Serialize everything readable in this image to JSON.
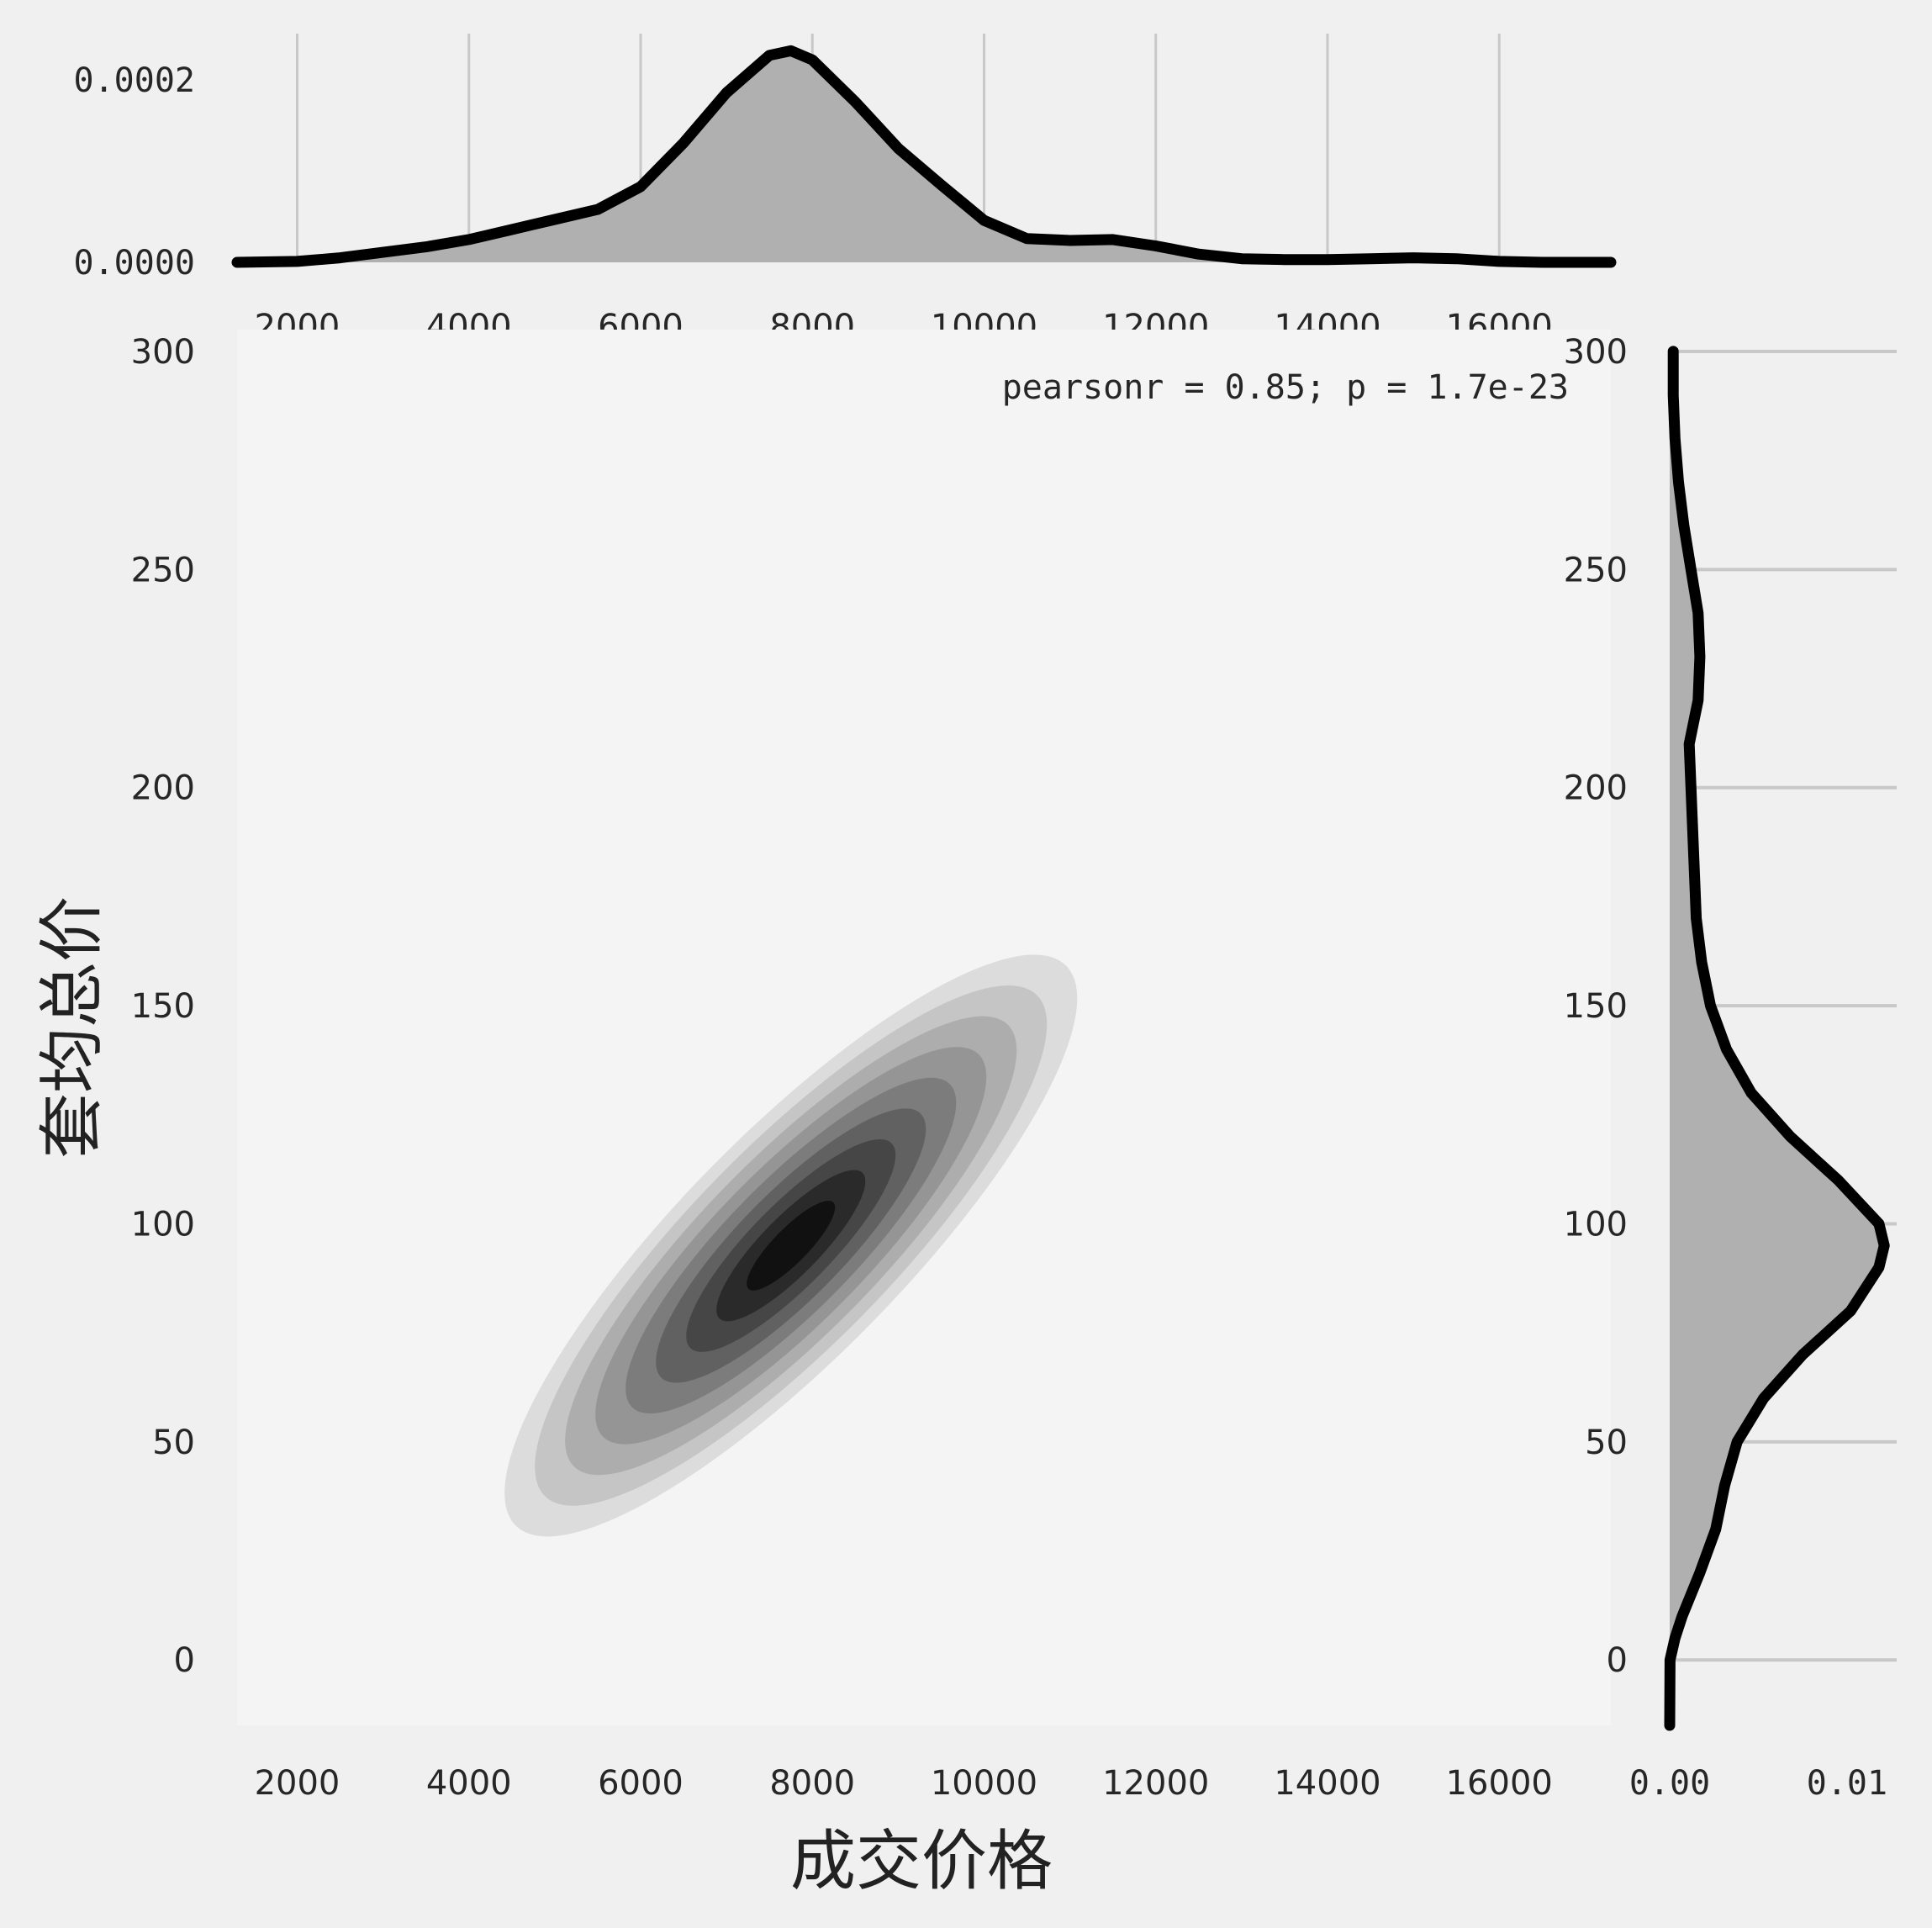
{
  "chart_data": {
    "type": "jointplot-kde",
    "title": "",
    "xlabel": "成交价格",
    "ylabel": "套均总价",
    "xlim": [
      1300,
      17300
    ],
    "ylim": [
      -15,
      305
    ],
    "x_ticks": [
      2000,
      4000,
      6000,
      8000,
      10000,
      12000,
      14000,
      16000
    ],
    "y_ticks": [
      0,
      50,
      100,
      150,
      200,
      250,
      300
    ],
    "x_tick_labels": [
      "2000",
      "4000",
      "6000",
      "8000",
      "10000",
      "12000",
      "14000",
      "16000"
    ],
    "y_tick_labels": [
      "0",
      "50",
      "100",
      "150",
      "200",
      "250",
      "300"
    ],
    "annotation": "pearsonr = 0.85; p = 1.7e-23",
    "grid": true,
    "colors": {
      "background": "#f0f0f0",
      "plot_background": "#f4f4f4",
      "grid": "#c8c8c8",
      "kde_fill": "#b0b0b0",
      "kde_line": "#000000",
      "contour_levels": [
        "#dcdcdc",
        "#c5c5c5",
        "#adadad",
        "#959595",
        "#7c7c7c",
        "#616161",
        "#464646",
        "#2a2a2a",
        "#111111"
      ]
    },
    "joint_kde": {
      "center": [
        7750,
        95
      ],
      "std_x": 1350,
      "std_y": 27,
      "correlation": 0.85,
      "levels": 9
    },
    "marginal_x": {
      "ylabel_ticks": [
        0.0,
        0.0002
      ],
      "y_tick_labels": [
        "0.0000",
        "0.0002"
      ],
      "ylim": [
        0,
        0.00026
      ],
      "x": [
        1300,
        2000,
        2500,
        3000,
        3500,
        4000,
        4500,
        5000,
        5500,
        6000,
        6500,
        7000,
        7500,
        7750,
        8000,
        8500,
        9000,
        9500,
        10000,
        10500,
        11000,
        11500,
        12000,
        12500,
        13000,
        13500,
        14000,
        14500,
        15000,
        15500,
        16000,
        16500,
        17000,
        17300
      ],
      "density": [
        0.0,
        1e-06,
        5e-06,
        1.1e-05,
        1.7e-05,
        2.5e-05,
        3.6e-05,
        4.7e-05,
        5.8e-05,
        8.3e-05,
        0.000131,
        0.000186,
        0.000227,
        0.000232,
        0.000222,
        0.000176,
        0.000125,
        8.5e-05,
        4.6e-05,
        2.6e-05,
        2.4e-05,
        2.5e-05,
        1.8e-05,
        9e-06,
        4e-06,
        3e-06,
        3e-06,
        4e-06,
        5e-06,
        4e-06,
        1e-06,
        0.0,
        0.0,
        0.0
      ]
    },
    "marginal_y": {
      "xlabel_ticks": [
        0.0,
        0.01
      ],
      "x_tick_labels": [
        "0.00",
        "0.01"
      ],
      "xlim": [
        0,
        0.0128
      ],
      "y": [
        -15,
        0,
        5,
        10,
        20,
        30,
        40,
        50,
        60,
        70,
        80,
        90,
        95,
        100,
        110,
        120,
        130,
        140,
        150,
        160,
        170,
        180,
        190,
        200,
        210,
        220,
        230,
        240,
        250,
        260,
        270,
        280,
        290,
        300
      ],
      "density": [
        0.0,
        2e-05,
        0.0003,
        0.0007,
        0.0017,
        0.0026,
        0.0031,
        0.0038,
        0.0053,
        0.0075,
        0.0102,
        0.0118,
        0.0121,
        0.0118,
        0.0095,
        0.0068,
        0.0046,
        0.0032,
        0.0023,
        0.0018,
        0.0015,
        0.0014,
        0.0013,
        0.0012,
        0.0011,
        0.0016,
        0.0017,
        0.0016,
        0.0012,
        0.0008,
        0.0005,
        0.0003,
        0.0002,
        0.0002
      ]
    }
  }
}
